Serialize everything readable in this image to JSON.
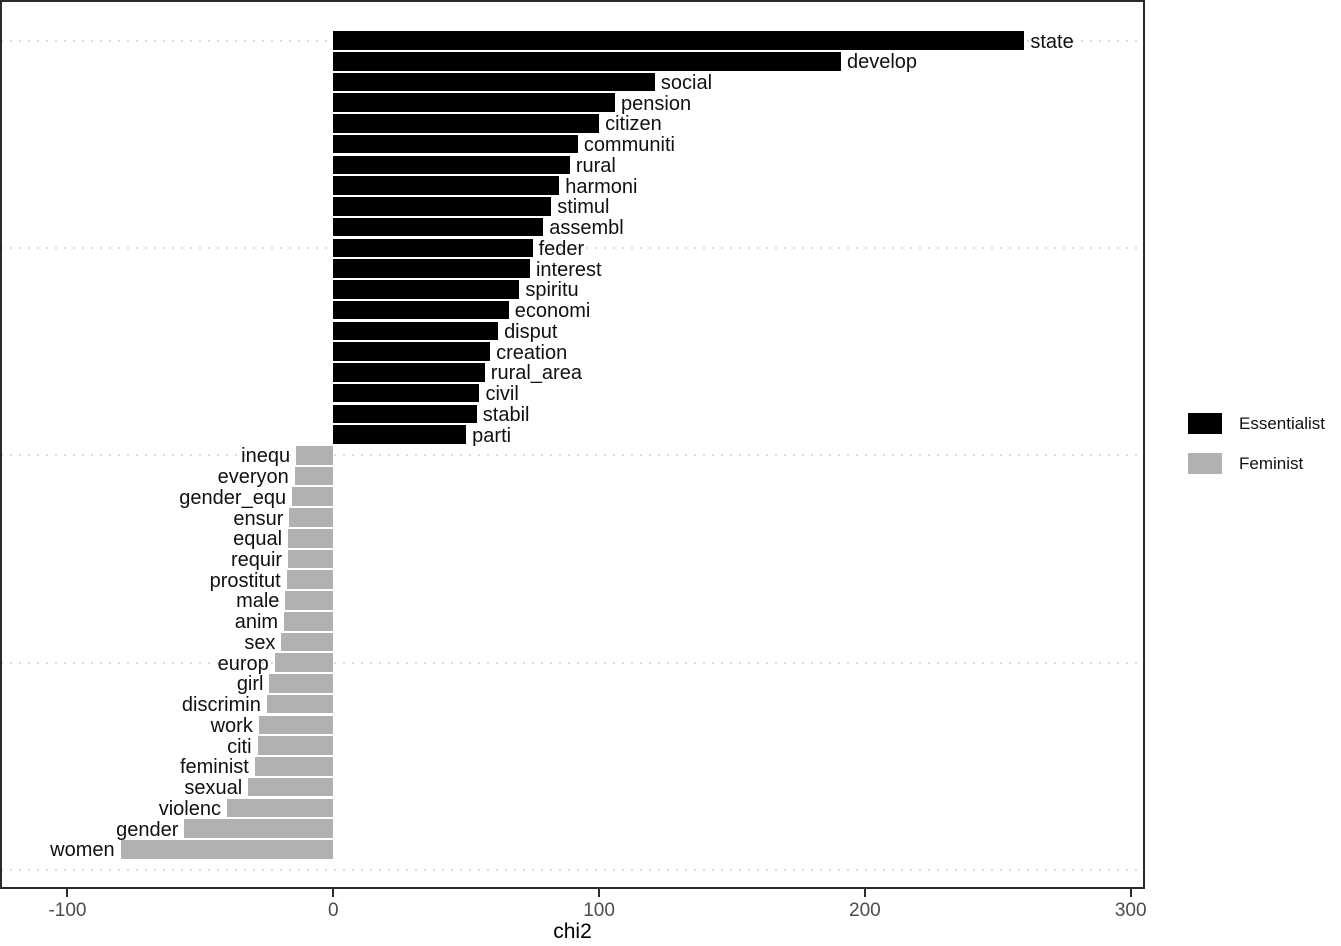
{
  "chart_data": {
    "type": "bar",
    "orientation": "horizontal",
    "title": "",
    "xlabel": "chi2",
    "ylabel": "",
    "xlim": [
      -125,
      305
    ],
    "x_ticks": [
      -100,
      0,
      100,
      200,
      300
    ],
    "grid": "horizontal dotted lines every 10 items",
    "legend_position": "right-outside",
    "colors": {
      "essentialist": "#000000",
      "feminist": "#b1b1b1",
      "grid": "#dcdcdc",
      "axis_text": "#4d4d4d",
      "panel_border": "#2b2b2b"
    },
    "series": [
      {
        "name": "Essentialist",
        "color": "#000000",
        "data": [
          {
            "label": "state",
            "value": 260
          },
          {
            "label": "develop",
            "value": 191
          },
          {
            "label": "social",
            "value": 121
          },
          {
            "label": "pension",
            "value": 106
          },
          {
            "label": "citizen",
            "value": 100
          },
          {
            "label": "communiti",
            "value": 92
          },
          {
            "label": "rural",
            "value": 89
          },
          {
            "label": "harmoni",
            "value": 85
          },
          {
            "label": "stimul",
            "value": 82
          },
          {
            "label": "assembl",
            "value": 79
          },
          {
            "label": "feder",
            "value": 75
          },
          {
            "label": "interest",
            "value": 74
          },
          {
            "label": "spiritu",
            "value": 70
          },
          {
            "label": "economi",
            "value": 66
          },
          {
            "label": "disput",
            "value": 62
          },
          {
            "label": "creation",
            "value": 59
          },
          {
            "label": "rural_area",
            "value": 57
          },
          {
            "label": "civil",
            "value": 55
          },
          {
            "label": "stabil",
            "value": 54
          },
          {
            "label": "parti",
            "value": 50
          }
        ]
      },
      {
        "name": "Feminist",
        "color": "#b1b1b1",
        "data": [
          {
            "label": "inequ",
            "value": -14
          },
          {
            "label": "everyon",
            "value": -14.5
          },
          {
            "label": "gender_equ",
            "value": -15.5
          },
          {
            "label": "ensur",
            "value": -16.5
          },
          {
            "label": "equal",
            "value": -17
          },
          {
            "label": "requir",
            "value": -17
          },
          {
            "label": "prostitut",
            "value": -17.5
          },
          {
            "label": "male",
            "value": -18
          },
          {
            "label": "anim",
            "value": -18.5
          },
          {
            "label": "sex",
            "value": -19.5
          },
          {
            "label": "europ",
            "value": -22
          },
          {
            "label": "girl",
            "value": -24
          },
          {
            "label": "discrimin",
            "value": -25
          },
          {
            "label": "work",
            "value": -28
          },
          {
            "label": "citi",
            "value": -28.5
          },
          {
            "label": "feminist",
            "value": -29.5
          },
          {
            "label": "sexual",
            "value": -32
          },
          {
            "label": "violenc",
            "value": -40
          },
          {
            "label": "gender",
            "value": -56
          },
          {
            "label": "women",
            "value": -80
          }
        ]
      }
    ],
    "legend": [
      {
        "label": "Essentialist",
        "color": "#000000"
      },
      {
        "label": "Feminist",
        "color": "#b1b1b1"
      }
    ]
  }
}
